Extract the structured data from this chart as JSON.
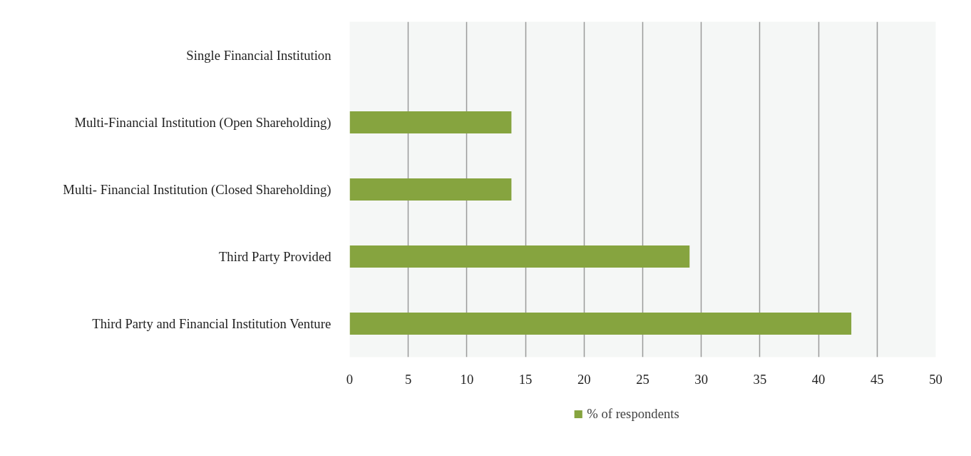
{
  "chart_data": {
    "type": "bar",
    "orientation": "horizontal",
    "categories": [
      "Single Financial Institution",
      "Multi-Financial Institution (Open Shareholding)",
      "Multi- Financial Institution (Closed Shareholding)",
      "Third Party Provided",
      "Third Party and Financial Institution Venture"
    ],
    "series": [
      {
        "name": "% of respondents",
        "color": "#86a43f",
        "values": [
          0,
          13.8,
          13.8,
          29,
          42.8
        ]
      }
    ],
    "xlim": [
      0,
      50
    ],
    "xticks": [
      0,
      5,
      10,
      15,
      20,
      25,
      30,
      35,
      40,
      45,
      50
    ],
    "grid": "x",
    "legend": "bottom"
  }
}
